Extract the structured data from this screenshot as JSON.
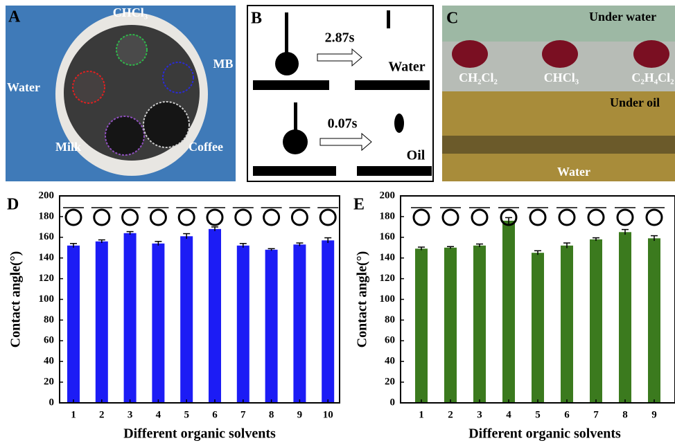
{
  "panels": {
    "A": {
      "letter": "A",
      "chcl3": "CHCl₃",
      "mb": "MB",
      "water": "Water",
      "milk": "Milk",
      "coffee": "Coffee"
    },
    "B": {
      "letter": "B",
      "time_water": "2.87s",
      "water": "Water",
      "time_oil": "0.07s",
      "oil": "Oil"
    },
    "C": {
      "letter": "C",
      "under_water": "Under water",
      "ch2cl2": "CH₂Cl₂",
      "chcl3": "CHCl₃",
      "c2h4cl2": "C₂H₄Cl₂",
      "under_oil": "Under oil",
      "water": "Water"
    }
  },
  "chart_data": [
    {
      "type": "bar",
      "letter": "D",
      "y_label": "Contact angle(°)",
      "x_label": "Different organic solvents",
      "categories": [
        "1",
        "2",
        "3",
        "4",
        "5",
        "6",
        "7",
        "8",
        "9",
        "10"
      ],
      "values": [
        152,
        156,
        164,
        154,
        161,
        168,
        152,
        148,
        153,
        157
      ],
      "errors": [
        2,
        1.5,
        1.5,
        2,
        2.5,
        2,
        2,
        1,
        1.5,
        2.5
      ],
      "color": "#1c1cf5",
      "ylim": [
        0,
        200
      ],
      "yticks": [
        0,
        20,
        40,
        60,
        80,
        100,
        120,
        140,
        160,
        180,
        200
      ]
    },
    {
      "type": "bar",
      "letter": "E",
      "y_label": "Contact angle(°)",
      "x_label": "Different organic solvents",
      "categories": [
        "1",
        "2",
        "3",
        "4",
        "5",
        "6",
        "7",
        "8",
        "9"
      ],
      "values": [
        149,
        150,
        152,
        176,
        145,
        152,
        158,
        165,
        159
      ],
      "errors": [
        1.5,
        1,
        1.5,
        3,
        2,
        2.5,
        1.5,
        2.5,
        2.5
      ],
      "color": "#3b7a1e",
      "ylim": [
        0,
        200
      ],
      "yticks": [
        0,
        20,
        40,
        60,
        80,
        100,
        120,
        140,
        160,
        180,
        200
      ]
    }
  ]
}
